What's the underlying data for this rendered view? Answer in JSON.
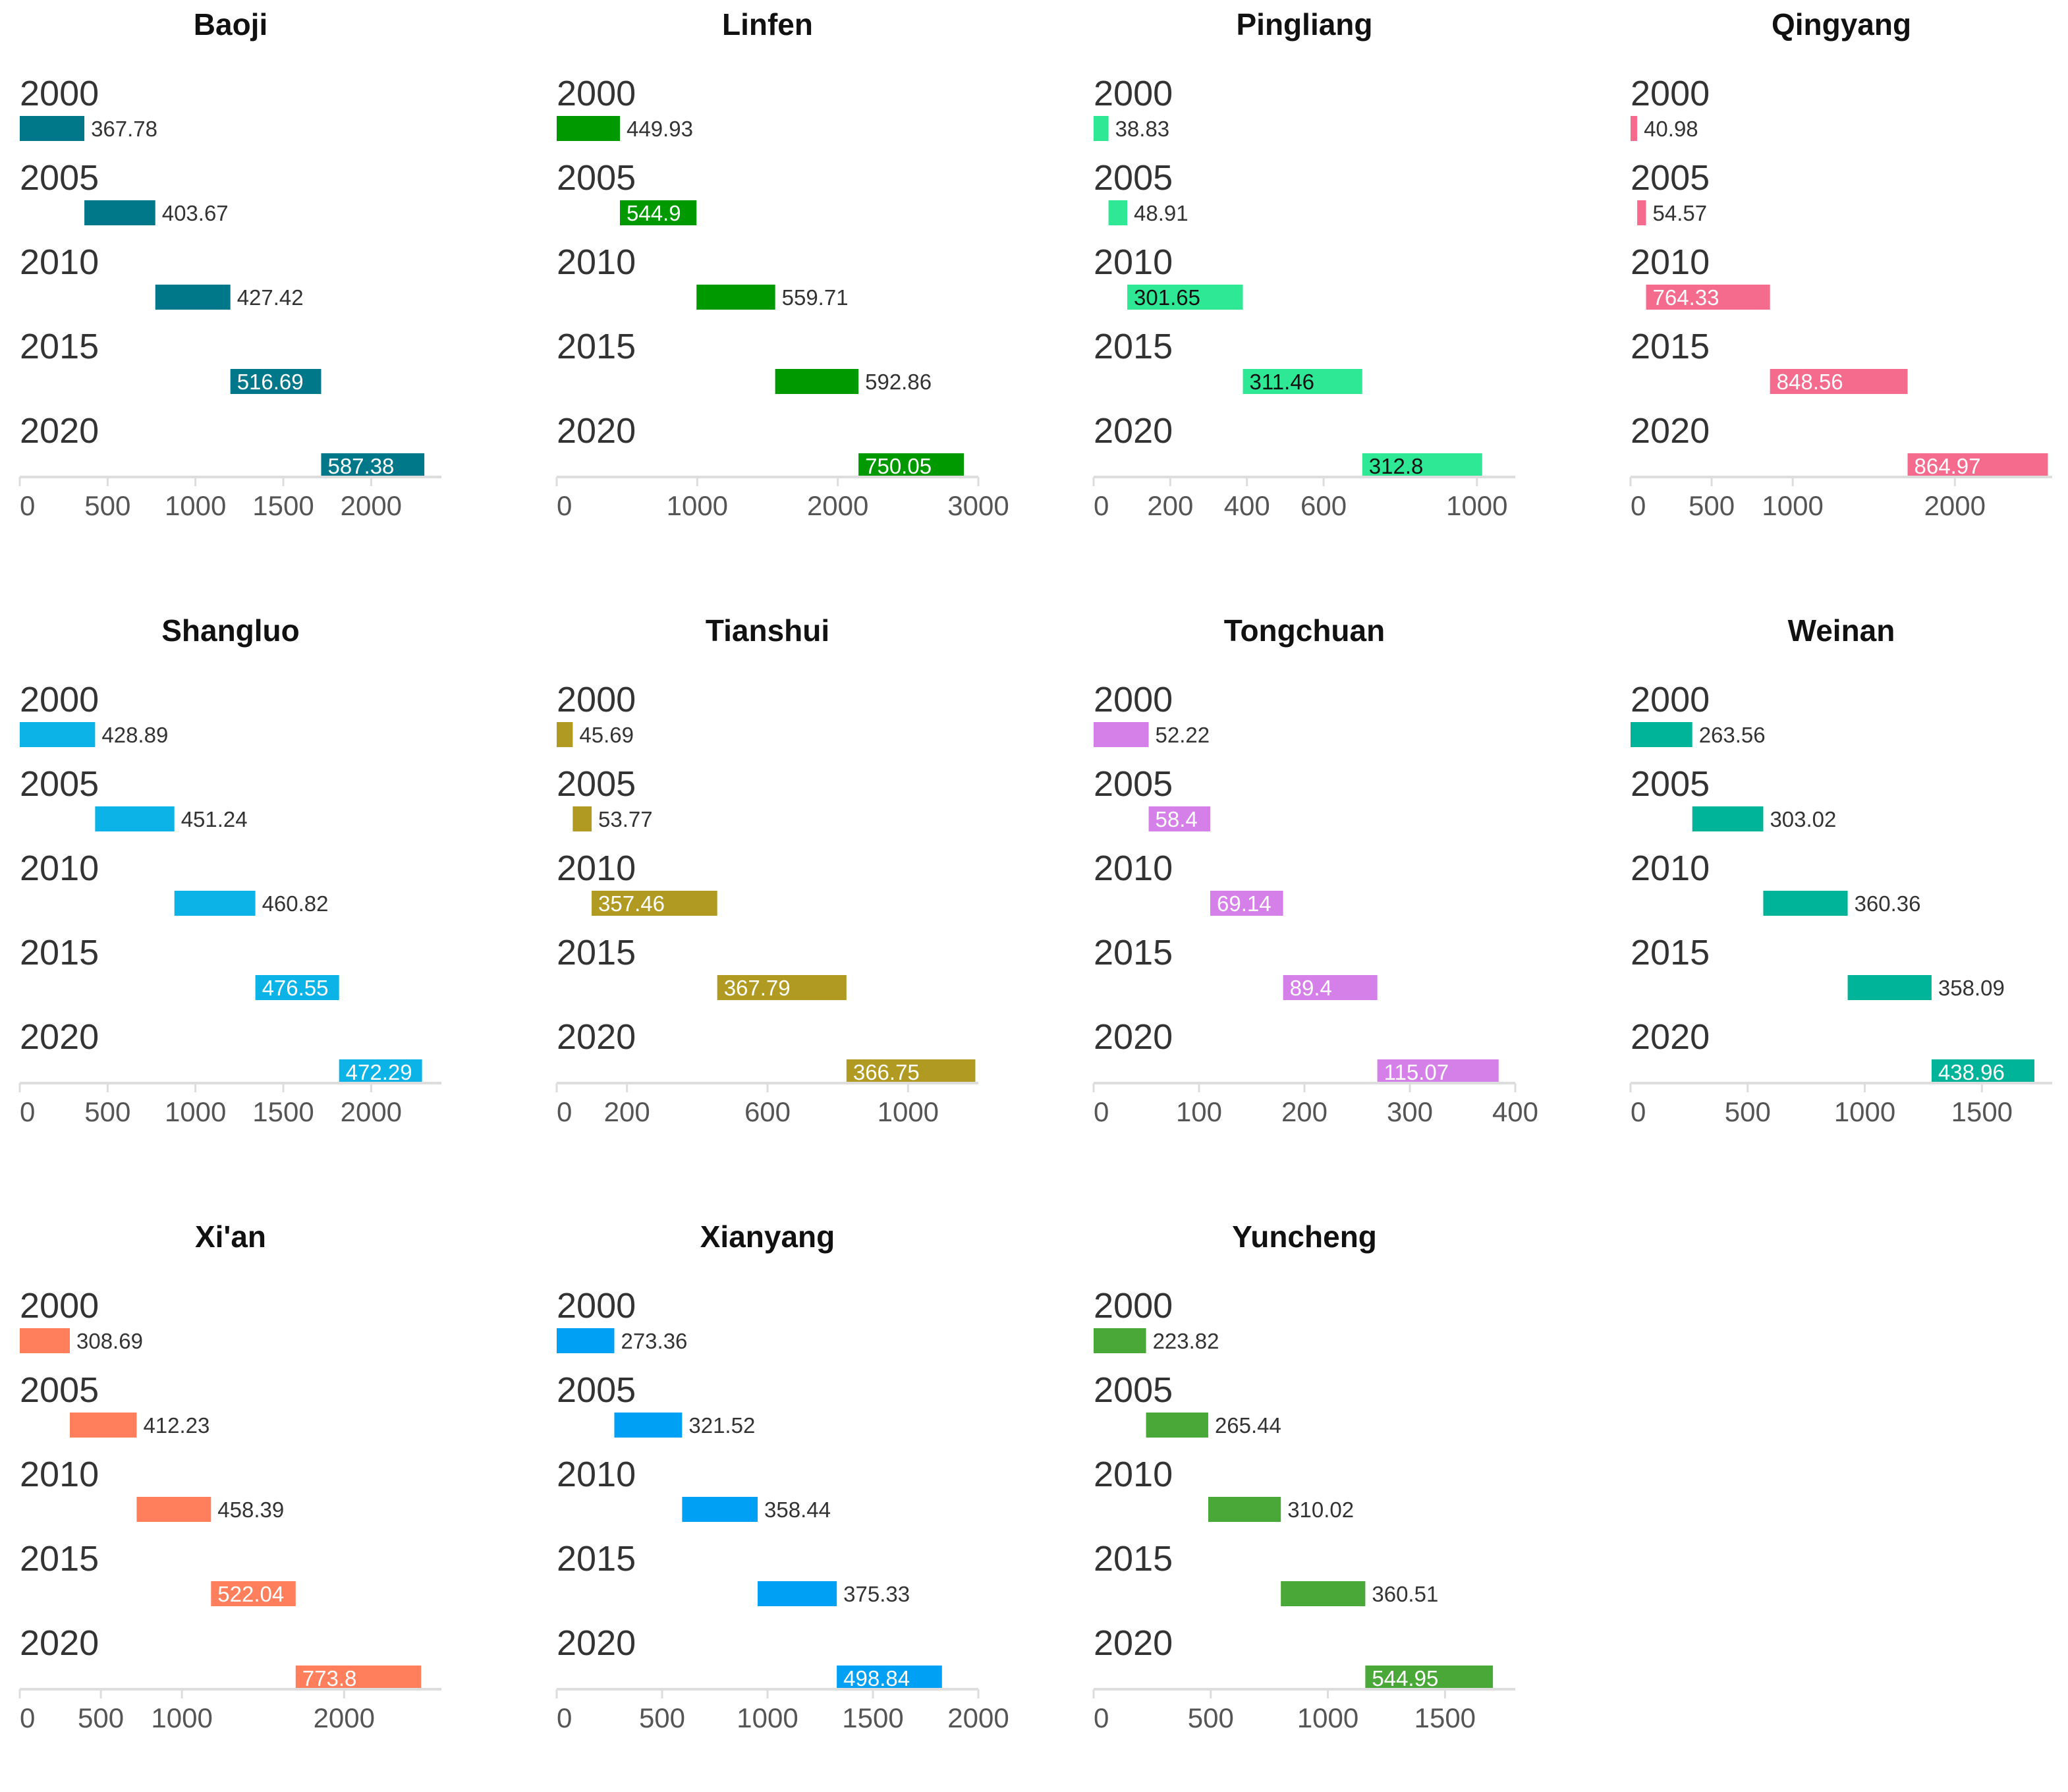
{
  "chart_data": [
    {
      "type": "bar",
      "title": "Baoji",
      "color": "#00788a",
      "categories": [
        "2000",
        "2005",
        "2010",
        "2015",
        "2020"
      ],
      "values": [
        367.78,
        403.67,
        427.42,
        516.69,
        587.38
      ],
      "label_inside": [
        false,
        false,
        false,
        true,
        true
      ],
      "xticks": [
        "0",
        "500",
        "1000",
        "1500",
        "2000"
      ],
      "xtick_values": [
        0,
        500,
        1000,
        1500,
        2000
      ],
      "xlim": [
        0,
        2400
      ]
    },
    {
      "type": "bar",
      "title": "Linfen",
      "color": "#009900",
      "categories": [
        "2000",
        "2005",
        "2010",
        "2015",
        "2020"
      ],
      "values": [
        449.93,
        544.9,
        559.71,
        592.86,
        750.05
      ],
      "label_inside": [
        false,
        true,
        false,
        false,
        true
      ],
      "xticks": [
        "0",
        "1000",
        "2000",
        "3000"
      ],
      "xtick_values": [
        0,
        1000,
        2000,
        3000
      ],
      "xlim": [
        0,
        3000
      ]
    },
    {
      "type": "bar",
      "title": "Pingliang",
      "color": "#2ee896",
      "categories": [
        "2000",
        "2005",
        "2010",
        "2015",
        "2020"
      ],
      "values": [
        38.83,
        48.91,
        301.65,
        311.46,
        312.8
      ],
      "label_inside": [
        false,
        false,
        true,
        true,
        true
      ],
      "xticks": [
        "0",
        "200",
        "400",
        "600",
        "1000"
      ],
      "xtick_values": [
        0,
        200,
        400,
        600,
        1000
      ],
      "xlim": [
        0,
        1100
      ],
      "inside_text_color": "#111111"
    },
    {
      "type": "bar",
      "title": "Qingyang",
      "color": "#f56b8d",
      "categories": [
        "2000",
        "2005",
        "2010",
        "2015",
        "2020"
      ],
      "values": [
        40.98,
        54.57,
        764.33,
        848.56,
        864.97
      ],
      "label_inside": [
        false,
        false,
        true,
        true,
        true
      ],
      "xticks": [
        "0",
        "500",
        "1000",
        "2000"
      ],
      "xtick_values": [
        0,
        500,
        1000,
        2000
      ],
      "xlim": [
        0,
        2600
      ]
    },
    {
      "type": "bar",
      "title": "Shangluo",
      "color": "#0bb3e6",
      "categories": [
        "2000",
        "2005",
        "2010",
        "2015",
        "2020"
      ],
      "values": [
        428.89,
        451.24,
        460.82,
        476.55,
        472.29
      ],
      "label_inside": [
        false,
        false,
        false,
        true,
        true
      ],
      "xticks": [
        "0",
        "500",
        "1000",
        "1500",
        "2000"
      ],
      "xtick_values": [
        0,
        500,
        1000,
        1500,
        2000
      ],
      "xlim": [
        0,
        2400
      ]
    },
    {
      "type": "bar",
      "title": "Tianshui",
      "color": "#b09a22",
      "categories": [
        "2000",
        "2005",
        "2010",
        "2015",
        "2020"
      ],
      "values": [
        45.69,
        53.77,
        357.46,
        367.79,
        366.75
      ],
      "label_inside": [
        false,
        false,
        true,
        true,
        true
      ],
      "xticks": [
        "0",
        "200",
        "600",
        "1000"
      ],
      "xtick_values": [
        0,
        200,
        600,
        1000
      ],
      "xlim": [
        0,
        1200
      ]
    },
    {
      "type": "bar",
      "title": "Tongchuan",
      "color": "#d580e8",
      "categories": [
        "2000",
        "2005",
        "2010",
        "2015",
        "2020"
      ],
      "values": [
        52.22,
        58.4,
        69.14,
        89.4,
        115.07
      ],
      "label_inside": [
        false,
        true,
        true,
        true,
        true
      ],
      "xticks": [
        "0",
        "100",
        "200",
        "300",
        "400"
      ],
      "xtick_values": [
        0,
        100,
        200,
        300,
        400
      ],
      "xlim": [
        0,
        400
      ]
    },
    {
      "type": "bar",
      "title": "Weinan",
      "color": "#00b49a",
      "categories": [
        "2000",
        "2005",
        "2010",
        "2015",
        "2020"
      ],
      "values": [
        263.56,
        303.02,
        360.36,
        358.09,
        438.96
      ],
      "label_inside": [
        false,
        false,
        false,
        false,
        true
      ],
      "xticks": [
        "0",
        "500",
        "1000",
        "1500"
      ],
      "xtick_values": [
        0,
        500,
        1000,
        1500
      ],
      "xlim": [
        0,
        1800
      ]
    },
    {
      "type": "bar",
      "title": "Xi'an",
      "color": "#ff7f5c",
      "categories": [
        "2000",
        "2005",
        "2010",
        "2015",
        "2020"
      ],
      "values": [
        308.69,
        412.23,
        458.39,
        522.04,
        773.8
      ],
      "label_inside": [
        false,
        false,
        false,
        true,
        true
      ],
      "xticks": [
        "0",
        "500",
        "1000",
        "2000"
      ],
      "xtick_values": [
        0,
        500,
        1000,
        2000
      ],
      "xlim": [
        0,
        2600
      ]
    },
    {
      "type": "bar",
      "title": "Xianyang",
      "color": "#00a0f5",
      "categories": [
        "2000",
        "2005",
        "2010",
        "2015",
        "2020"
      ],
      "values": [
        273.36,
        321.52,
        358.44,
        375.33,
        498.84
      ],
      "label_inside": [
        false,
        false,
        false,
        false,
        true
      ],
      "xticks": [
        "0",
        "500",
        "1000",
        "1500",
        "2000"
      ],
      "xtick_values": [
        0,
        500,
        1000,
        1500,
        2000
      ],
      "xlim": [
        0,
        2000
      ]
    },
    {
      "type": "bar",
      "title": "Yuncheng",
      "color": "#4aa838",
      "categories": [
        "2000",
        "2005",
        "2010",
        "2015",
        "2020"
      ],
      "values": [
        223.82,
        265.44,
        310.02,
        360.51,
        544.95
      ],
      "label_inside": [
        false,
        false,
        false,
        false,
        true
      ],
      "xticks": [
        "0",
        "500",
        "1000",
        "1500"
      ],
      "xtick_values": [
        0,
        500,
        1000,
        1500
      ],
      "xlim": [
        0,
        1800
      ]
    }
  ]
}
